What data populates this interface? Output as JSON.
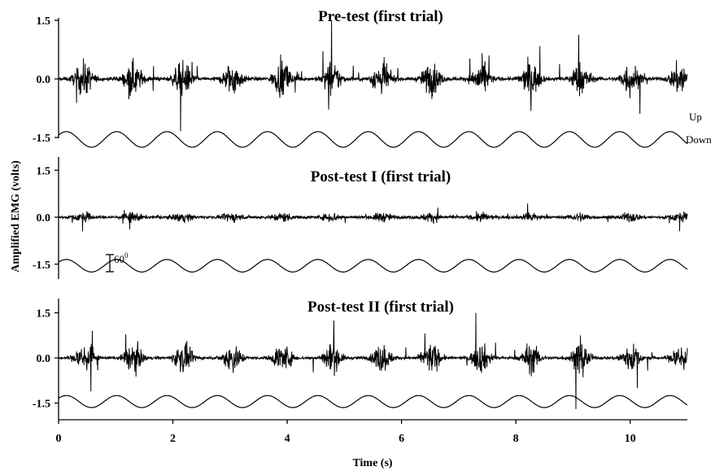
{
  "chart_data": {
    "type": "line",
    "ylabel": "Amplified EMG (volts)",
    "xlabel": "Time (s)",
    "xlim": [
      0,
      11
    ],
    "x_ticks": [
      0,
      2,
      4,
      6,
      8,
      10
    ],
    "y_ticks": [
      1.5,
      0.0,
      -1.5
    ],
    "y_tick_labels": [
      "1.5",
      "0.0",
      "-1.5"
    ],
    "grid": false,
    "panels": [
      {
        "title": "Pre-test (first trial)",
        "ylim": [
          -1.9,
          2.0
        ],
        "emg_baseline": 0.0,
        "emg_amplitude_peak": 1.5,
        "bursts_per_second": 1.15,
        "wave_center": -1.55,
        "wave_amplitude": 0.2,
        "wave_cycles": 12.5,
        "labels": {
          "up": "Up",
          "down": "Down"
        }
      },
      {
        "title": "Post-test I (first trial)",
        "ylim": [
          -1.9,
          2.0
        ],
        "emg_baseline": 0.0,
        "emg_amplitude_peak": 0.45,
        "bursts_per_second": 1.15,
        "wave_center": -1.55,
        "wave_amplitude": 0.2,
        "wave_cycles": 12.5,
        "scale_bar_label": "60",
        "scale_bar_sup": "0"
      },
      {
        "title": "Post-test II (first trial)",
        "ylim": [
          -1.9,
          2.0
        ],
        "emg_baseline": 0.0,
        "emg_amplitude_peak": 1.7,
        "bursts_per_second": 1.15,
        "wave_center": -1.45,
        "wave_amplitude": 0.2,
        "wave_cycles": 12.5
      }
    ]
  }
}
